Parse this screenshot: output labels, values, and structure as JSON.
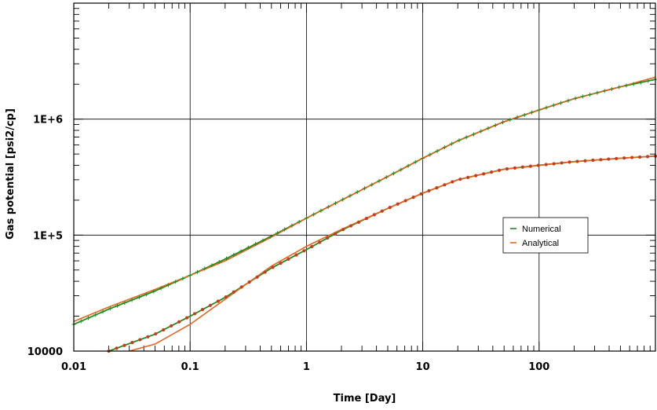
{
  "chart_data": {
    "type": "line",
    "x_scale": "log",
    "y_scale": "log",
    "xlabel": "Time [Day]",
    "ylabel": "Gas potential [psi2/cp]",
    "xlim": [
      0.01,
      1000
    ],
    "ylim": [
      10000,
      10000000
    ],
    "x_tick_labels": [
      "0.01",
      "0.1",
      "1",
      "10",
      "100"
    ],
    "y_tick_labels": [
      "10000",
      "1E+5",
      "1E+6"
    ],
    "grid": true,
    "legend_position": "right",
    "colors": {
      "numerical": "#1e8c1e",
      "analytical": "#e8641e",
      "numerical_markers": "#c83c1e"
    },
    "series": [
      {
        "name": "Numerical",
        "curve": "upper",
        "x": [
          0.01,
          0.02,
          0.05,
          0.1,
          0.2,
          0.5,
          1,
          2,
          5,
          10,
          20,
          50,
          100,
          200,
          500,
          1000
        ],
        "y": [
          17000,
          23000,
          33000,
          45000,
          62000,
          98000,
          140000,
          200000,
          320000,
          460000,
          650000,
          950000,
          1200000,
          1500000,
          1900000,
          2200000
        ]
      },
      {
        "name": "Analytical",
        "curve": "upper",
        "x": [
          0.01,
          0.02,
          0.05,
          0.1,
          0.2,
          0.5,
          1,
          2,
          5,
          10,
          20,
          50,
          100,
          200,
          500,
          1000
        ],
        "y": [
          18000,
          24000,
          34000,
          45000,
          60000,
          96000,
          140000,
          200000,
          320000,
          460000,
          650000,
          950000,
          1200000,
          1500000,
          1900000,
          2300000
        ]
      },
      {
        "name": "Numerical",
        "curve": "lower",
        "x": [
          0.02,
          0.05,
          0.1,
          0.2,
          0.5,
          1,
          2,
          5,
          10,
          20,
          50,
          100,
          200,
          500,
          1000
        ],
        "y": [
          10000,
          14000,
          20000,
          29000,
          52000,
          75000,
          110000,
          170000,
          230000,
          300000,
          370000,
          400000,
          430000,
          460000,
          480000
        ]
      },
      {
        "name": "Analytical",
        "curve": "lower",
        "x": [
          0.03,
          0.05,
          0.1,
          0.2,
          0.5,
          1,
          2,
          5,
          10,
          20,
          50,
          100,
          200,
          500,
          1000
        ],
        "y": [
          10000,
          11500,
          17000,
          28000,
          54000,
          80000,
          112000,
          170000,
          230000,
          300000,
          370000,
          400000,
          430000,
          460000,
          480000
        ]
      }
    ]
  }
}
